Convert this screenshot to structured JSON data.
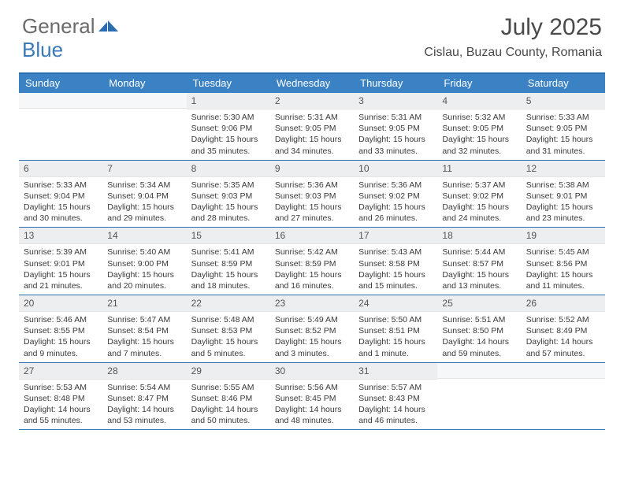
{
  "logo": {
    "part1": "General",
    "part2": "Blue"
  },
  "title": "July 2025",
  "subtitle": "Cislau, Buzau County, Romania",
  "colors": {
    "header_bg": "#3b82c4",
    "header_text": "#ffffff",
    "rule": "#2a6db0",
    "daynum_bg": "#eceef0",
    "logo_icon": "#2a6db0"
  },
  "dow": [
    "Sunday",
    "Monday",
    "Tuesday",
    "Wednesday",
    "Thursday",
    "Friday",
    "Saturday"
  ],
  "weeks": [
    [
      {
        "n": "",
        "sr": "",
        "ss": "",
        "dl": ""
      },
      {
        "n": "",
        "sr": "",
        "ss": "",
        "dl": ""
      },
      {
        "n": "1",
        "sr": "5:30 AM",
        "ss": "9:06 PM",
        "dl": "15 hours and 35 minutes."
      },
      {
        "n": "2",
        "sr": "5:31 AM",
        "ss": "9:05 PM",
        "dl": "15 hours and 34 minutes."
      },
      {
        "n": "3",
        "sr": "5:31 AM",
        "ss": "9:05 PM",
        "dl": "15 hours and 33 minutes."
      },
      {
        "n": "4",
        "sr": "5:32 AM",
        "ss": "9:05 PM",
        "dl": "15 hours and 32 minutes."
      },
      {
        "n": "5",
        "sr": "5:33 AM",
        "ss": "9:05 PM",
        "dl": "15 hours and 31 minutes."
      }
    ],
    [
      {
        "n": "6",
        "sr": "5:33 AM",
        "ss": "9:04 PM",
        "dl": "15 hours and 30 minutes."
      },
      {
        "n": "7",
        "sr": "5:34 AM",
        "ss": "9:04 PM",
        "dl": "15 hours and 29 minutes."
      },
      {
        "n": "8",
        "sr": "5:35 AM",
        "ss": "9:03 PM",
        "dl": "15 hours and 28 minutes."
      },
      {
        "n": "9",
        "sr": "5:36 AM",
        "ss": "9:03 PM",
        "dl": "15 hours and 27 minutes."
      },
      {
        "n": "10",
        "sr": "5:36 AM",
        "ss": "9:02 PM",
        "dl": "15 hours and 26 minutes."
      },
      {
        "n": "11",
        "sr": "5:37 AM",
        "ss": "9:02 PM",
        "dl": "15 hours and 24 minutes."
      },
      {
        "n": "12",
        "sr": "5:38 AM",
        "ss": "9:01 PM",
        "dl": "15 hours and 23 minutes."
      }
    ],
    [
      {
        "n": "13",
        "sr": "5:39 AM",
        "ss": "9:01 PM",
        "dl": "15 hours and 21 minutes."
      },
      {
        "n": "14",
        "sr": "5:40 AM",
        "ss": "9:00 PM",
        "dl": "15 hours and 20 minutes."
      },
      {
        "n": "15",
        "sr": "5:41 AM",
        "ss": "8:59 PM",
        "dl": "15 hours and 18 minutes."
      },
      {
        "n": "16",
        "sr": "5:42 AM",
        "ss": "8:59 PM",
        "dl": "15 hours and 16 minutes."
      },
      {
        "n": "17",
        "sr": "5:43 AM",
        "ss": "8:58 PM",
        "dl": "15 hours and 15 minutes."
      },
      {
        "n": "18",
        "sr": "5:44 AM",
        "ss": "8:57 PM",
        "dl": "15 hours and 13 minutes."
      },
      {
        "n": "19",
        "sr": "5:45 AM",
        "ss": "8:56 PM",
        "dl": "15 hours and 11 minutes."
      }
    ],
    [
      {
        "n": "20",
        "sr": "5:46 AM",
        "ss": "8:55 PM",
        "dl": "15 hours and 9 minutes."
      },
      {
        "n": "21",
        "sr": "5:47 AM",
        "ss": "8:54 PM",
        "dl": "15 hours and 7 minutes."
      },
      {
        "n": "22",
        "sr": "5:48 AM",
        "ss": "8:53 PM",
        "dl": "15 hours and 5 minutes."
      },
      {
        "n": "23",
        "sr": "5:49 AM",
        "ss": "8:52 PM",
        "dl": "15 hours and 3 minutes."
      },
      {
        "n": "24",
        "sr": "5:50 AM",
        "ss": "8:51 PM",
        "dl": "15 hours and 1 minute."
      },
      {
        "n": "25",
        "sr": "5:51 AM",
        "ss": "8:50 PM",
        "dl": "14 hours and 59 minutes."
      },
      {
        "n": "26",
        "sr": "5:52 AM",
        "ss": "8:49 PM",
        "dl": "14 hours and 57 minutes."
      }
    ],
    [
      {
        "n": "27",
        "sr": "5:53 AM",
        "ss": "8:48 PM",
        "dl": "14 hours and 55 minutes."
      },
      {
        "n": "28",
        "sr": "5:54 AM",
        "ss": "8:47 PM",
        "dl": "14 hours and 53 minutes."
      },
      {
        "n": "29",
        "sr": "5:55 AM",
        "ss": "8:46 PM",
        "dl": "14 hours and 50 minutes."
      },
      {
        "n": "30",
        "sr": "5:56 AM",
        "ss": "8:45 PM",
        "dl": "14 hours and 48 minutes."
      },
      {
        "n": "31",
        "sr": "5:57 AM",
        "ss": "8:43 PM",
        "dl": "14 hours and 46 minutes."
      },
      {
        "n": "",
        "sr": "",
        "ss": "",
        "dl": ""
      },
      {
        "n": "",
        "sr": "",
        "ss": "",
        "dl": ""
      }
    ]
  ],
  "labels": {
    "sunrise": "Sunrise:",
    "sunset": "Sunset:",
    "daylight": "Daylight:"
  }
}
